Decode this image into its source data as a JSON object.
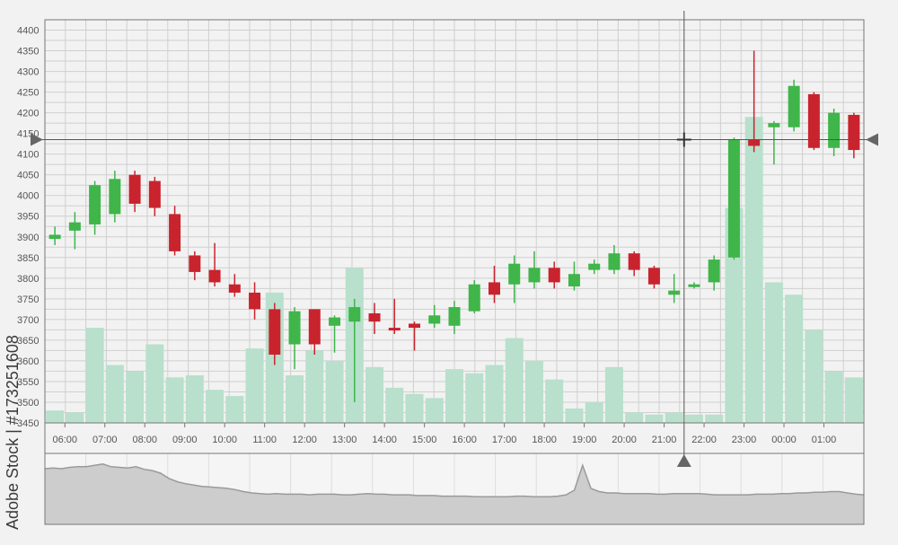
{
  "chart_data": {
    "type": "candlestick",
    "y_ticks": [
      "4400",
      "4350",
      "4300",
      "4250",
      "4200",
      "4150",
      "4100",
      "4050",
      "4000",
      "3950",
      "3900",
      "3850",
      "3800",
      "3750",
      "3700",
      "3650",
      "3600",
      "3550",
      "3500",
      "3450"
    ],
    "ylim": [
      3450,
      4425
    ],
    "time_labels": [
      "06:00",
      "07:00",
      "08:00",
      "09:00",
      "10:00",
      "11:00",
      "12:00",
      "13:00",
      "14:00",
      "15:00",
      "16:00",
      "17:00",
      "18:00",
      "19:00",
      "20:00",
      "21:00",
      "22:00",
      "23:00",
      "00:00",
      "01:00"
    ],
    "grid": true,
    "candles": [
      {
        "open": 3895,
        "close": 3905,
        "high": 3925,
        "low": 3880,
        "dir": "up"
      },
      {
        "open": 3915,
        "close": 3935,
        "high": 3960,
        "low": 3870,
        "dir": "up"
      },
      {
        "open": 3930,
        "close": 4025,
        "high": 4035,
        "low": 3905,
        "dir": "up"
      },
      {
        "open": 3955,
        "close": 4040,
        "high": 4060,
        "low": 3935,
        "dir": "up"
      },
      {
        "open": 4050,
        "close": 3980,
        "high": 4060,
        "low": 3960,
        "dir": "down"
      },
      {
        "open": 4035,
        "close": 3970,
        "high": 4045,
        "low": 3950,
        "dir": "down"
      },
      {
        "open": 3955,
        "close": 3865,
        "high": 3975,
        "low": 3855,
        "dir": "down"
      },
      {
        "open": 3855,
        "close": 3815,
        "high": 3865,
        "low": 3795,
        "dir": "down"
      },
      {
        "open": 3820,
        "close": 3790,
        "high": 3885,
        "low": 3780,
        "dir": "down"
      },
      {
        "open": 3785,
        "close": 3765,
        "high": 3810,
        "low": 3755,
        "dir": "down"
      },
      {
        "open": 3765,
        "close": 3725,
        "high": 3790,
        "low": 3700,
        "dir": "down"
      },
      {
        "open": 3725,
        "close": 3615,
        "high": 3740,
        "low": 3590,
        "dir": "down"
      },
      {
        "open": 3640,
        "close": 3720,
        "high": 3730,
        "low": 3580,
        "dir": "up"
      },
      {
        "open": 3725,
        "close": 3640,
        "high": 3725,
        "low": 3615,
        "dir": "down"
      },
      {
        "open": 3685,
        "close": 3705,
        "high": 3710,
        "low": 3620,
        "dir": "up"
      },
      {
        "open": 3695,
        "close": 3730,
        "high": 3750,
        "low": 3500,
        "dir": "up"
      },
      {
        "open": 3715,
        "close": 3695,
        "high": 3740,
        "low": 3665,
        "dir": "down"
      },
      {
        "open": 3680,
        "close": 3675,
        "high": 3750,
        "low": 3665,
        "dir": "down"
      },
      {
        "open": 3690,
        "close": 3680,
        "high": 3695,
        "low": 3625,
        "dir": "down"
      },
      {
        "open": 3690,
        "close": 3710,
        "high": 3735,
        "low": 3680,
        "dir": "up"
      },
      {
        "open": 3685,
        "close": 3730,
        "high": 3745,
        "low": 3665,
        "dir": "up"
      },
      {
        "open": 3720,
        "close": 3785,
        "high": 3795,
        "low": 3715,
        "dir": "up"
      },
      {
        "open": 3790,
        "close": 3760,
        "high": 3830,
        "low": 3740,
        "dir": "down"
      },
      {
        "open": 3785,
        "close": 3835,
        "high": 3855,
        "low": 3740,
        "dir": "up"
      },
      {
        "open": 3790,
        "close": 3825,
        "high": 3865,
        "low": 3775,
        "dir": "up"
      },
      {
        "open": 3825,
        "close": 3790,
        "high": 3840,
        "low": 3775,
        "dir": "down"
      },
      {
        "open": 3780,
        "close": 3810,
        "high": 3840,
        "low": 3770,
        "dir": "up"
      },
      {
        "open": 3820,
        "close": 3835,
        "high": 3845,
        "low": 3810,
        "dir": "up"
      },
      {
        "open": 3820,
        "close": 3860,
        "high": 3880,
        "low": 3810,
        "dir": "up"
      },
      {
        "open": 3860,
        "close": 3820,
        "high": 3865,
        "low": 3805,
        "dir": "down"
      },
      {
        "open": 3825,
        "close": 3785,
        "high": 3830,
        "low": 3775,
        "dir": "down"
      },
      {
        "open": 3760,
        "close": 3770,
        "high": 3810,
        "low": 3740,
        "dir": "up"
      },
      {
        "open": 3780,
        "close": 3785,
        "high": 3790,
        "low": 3775,
        "dir": "up"
      },
      {
        "open": 3790,
        "close": 3845,
        "high": 3855,
        "low": 3770,
        "dir": "up"
      },
      {
        "open": 3850,
        "close": 4135,
        "high": 4140,
        "low": 3845,
        "dir": "up"
      },
      {
        "open": 4135,
        "close": 4120,
        "high": 4350,
        "low": 4105,
        "dir": "down"
      },
      {
        "open": 4165,
        "close": 4175,
        "high": 4180,
        "low": 4075,
        "dir": "up"
      },
      {
        "open": 4165,
        "close": 4265,
        "high": 4280,
        "low": 4155,
        "dir": "up"
      },
      {
        "open": 4245,
        "close": 4115,
        "high": 4250,
        "low": 4110,
        "dir": "down"
      },
      {
        "open": 4115,
        "close": 4200,
        "high": 4210,
        "low": 4095,
        "dir": "up"
      },
      {
        "open": 4195,
        "close": 4110,
        "high": 4200,
        "low": 4090,
        "dir": "down"
      }
    ],
    "volume": [
      3480,
      3475,
      3680,
      3590,
      3575,
      3640,
      3560,
      3565,
      3530,
      3515,
      3630,
      3765,
      3565,
      3625,
      3600,
      3825,
      3585,
      3535,
      3520,
      3510,
      3580,
      3570,
      3590,
      3655,
      3600,
      3555,
      3485,
      3500,
      3585,
      3475,
      3470,
      3475,
      3470,
      3470,
      3970,
      4190,
      3790,
      3760,
      3675,
      3575,
      3560
    ],
    "crosshair": {
      "price": 4135,
      "time_index": 31.5
    },
    "navigator": [
      0.85,
      0.86,
      0.85,
      0.87,
      0.88,
      0.88,
      0.9,
      0.92,
      0.88,
      0.87,
      0.86,
      0.88,
      0.84,
      0.82,
      0.78,
      0.7,
      0.65,
      0.62,
      0.6,
      0.58,
      0.57,
      0.56,
      0.55,
      0.53,
      0.5,
      0.48,
      0.47,
      0.46,
      0.47,
      0.46,
      0.46,
      0.46,
      0.45,
      0.46,
      0.46,
      0.46,
      0.45,
      0.45,
      0.46,
      0.47,
      0.46,
      0.46,
      0.45,
      0.45,
      0.45,
      0.44,
      0.44,
      0.44,
      0.43,
      0.43,
      0.43,
      0.43,
      0.42,
      0.42,
      0.42,
      0.42,
      0.42,
      0.43,
      0.43,
      0.42,
      0.42,
      0.42,
      0.43,
      0.45,
      0.52,
      0.9,
      0.55,
      0.5,
      0.48,
      0.48,
      0.47,
      0.47,
      0.47,
      0.47,
      0.46,
      0.46,
      0.47,
      0.47,
      0.47,
      0.47,
      0.46,
      0.45,
      0.45,
      0.45,
      0.45,
      0.45,
      0.46,
      0.46,
      0.46,
      0.47,
      0.47,
      0.48,
      0.48,
      0.49,
      0.49,
      0.5,
      0.5,
      0.48,
      0.46,
      0.45
    ],
    "colors": {
      "up": "#3fb54a",
      "down": "#c9232e",
      "volume": "#b8e0cc",
      "grid": "#cfcfcf",
      "frame": "#777777",
      "crosshair": "#555555",
      "navigator_fill": "#cdcdcd",
      "navigator_line": "#9a9a9a"
    }
  },
  "watermark": {
    "side_text": "Adobe Stock | #173251608"
  }
}
